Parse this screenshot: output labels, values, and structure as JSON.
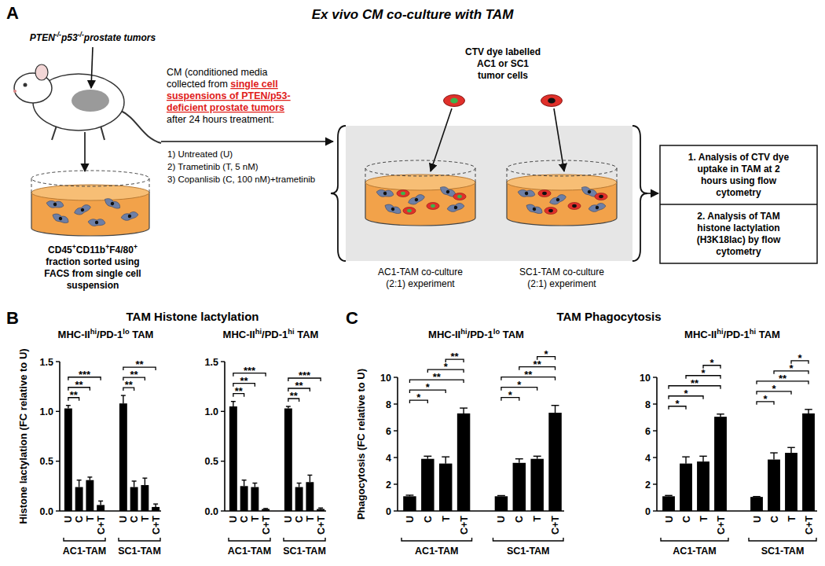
{
  "figure": {
    "panel_a": {
      "letter": "A",
      "title": "Ex vivo CM co-culture with TAM",
      "mouse_label": [
        "PTEN",
        "-/-",
        "p53",
        "-/-",
        "prostate tumors"
      ],
      "sort_label": [
        [
          "CD45",
          "+",
          "CD11b",
          "+",
          "F4/80",
          "+"
        ],
        [
          "fraction sorted using"
        ],
        [
          "FACS from single cell"
        ],
        [
          "suspension"
        ]
      ],
      "cm_text": [
        "CM (conditioned media",
        {
          "text": "collected from ",
          "em": "single cell"
        },
        {
          "em": "suspensions of PTEN/p53-"
        },
        {
          "em": "deficient prostate tumors"
        },
        "after 24 hours treatment:"
      ],
      "treatments": [
        "1) Untreated (U)",
        "2) Trametinib (T, 5 nM)",
        "3) Copanlisib (C, 100 nM)+trametinib"
      ],
      "ctv_label": [
        "CTV dye labelled",
        "AC1 or SC1",
        "tumor cells"
      ],
      "cocultures": [
        [
          "AC1-TAM co-culture",
          "(2:1) experiment"
        ],
        [
          "SC1-TAM co-culture",
          "(2:1) experiment"
        ]
      ],
      "analyses": [
        [
          "1. Analysis of CTV dye",
          "uptake in TAM at 2",
          "hours using flow",
          "cytometry"
        ],
        [
          "2. Analysis of TAM",
          "histone lactylation",
          "(H3K18lac) by flow",
          "cytometry"
        ]
      ]
    },
    "panels": [
      {
        "letter": "B",
        "title": "TAM Histone lactylation"
      },
      {
        "letter": "C",
        "title": "TAM Phagocytosis"
      }
    ]
  },
  "chart_data": [
    {
      "type": "bar",
      "subtitle": [
        "MHC-II",
        "hi",
        "/PD-1",
        "lo",
        " TAM"
      ],
      "y_label": "Histone lactylation (FC relative to U)",
      "categories": [
        "U",
        "C",
        "T",
        "C+T",
        "U",
        "C",
        "T",
        "C+T"
      ],
      "groups": [
        "AC1-TAM",
        "SC1-TAM"
      ],
      "values": [
        1.03,
        0.24,
        0.31,
        0.06,
        1.08,
        0.24,
        0.26,
        0.04
      ],
      "errors": [
        0.03,
        0.07,
        0.03,
        0.04,
        0.08,
        0.06,
        0.07,
        0.03
      ],
      "color": "#000000",
      "ylim": [
        0,
        1.5
      ],
      "yticks": [
        {
          "value": 0,
          "label": "0.0"
        },
        0.5,
        {
          "value": 1,
          "label": "1.0"
        },
        1.5
      ],
      "brackets": [
        {
          "bars": [
            0,
            1
          ],
          "label": "**"
        },
        {
          "bars": [
            0,
            2
          ],
          "label": "**"
        },
        {
          "bars": [
            0,
            3
          ],
          "label": "***"
        },
        {
          "bars": [
            4,
            5
          ],
          "label": "**"
        },
        {
          "bars": [
            4,
            6
          ],
          "label": "**"
        },
        {
          "bars": [
            4,
            7
          ],
          "label": "**"
        }
      ]
    },
    {
      "type": "bar",
      "subtitle": [
        "MHC-II",
        "hi",
        "/PD-1",
        "hi",
        " TAM"
      ],
      "categories": [
        "U",
        "C",
        "T",
        "C+T",
        "U",
        "C",
        "T",
        "C+T"
      ],
      "groups": [
        "AC1-TAM",
        "SC1-TAM"
      ],
      "values": [
        1.05,
        0.25,
        0.24,
        0.02,
        1.03,
        0.24,
        0.29,
        0.02
      ],
      "errors": [
        0.05,
        0.06,
        0.04,
        0.005,
        0.02,
        0.04,
        0.07,
        0.01
      ],
      "color": "#000000",
      "ylim": [
        0,
        1.5
      ],
      "yticks": [
        {
          "value": 0,
          "label": "0.0"
        },
        0.5,
        {
          "value": 1,
          "label": "1.0"
        },
        1.5
      ],
      "brackets": [
        {
          "bars": [
            0,
            1
          ],
          "label": "**"
        },
        {
          "bars": [
            0,
            2
          ],
          "label": "**"
        },
        {
          "bars": [
            0,
            3
          ],
          "label": "***"
        },
        {
          "bars": [
            4,
            5
          ],
          "label": "**"
        },
        {
          "bars": [
            4,
            6
          ],
          "label": "**"
        },
        {
          "bars": [
            4,
            7
          ],
          "label": "***"
        }
      ]
    },
    {
      "type": "bar",
      "subtitle": [
        "MHC-II",
        "hi",
        "/PD-1",
        "lo",
        " TAM"
      ],
      "y_label": "Phagocytosis (FC relative to U)",
      "categories": [
        "U",
        "C",
        "T",
        "C+T",
        "U",
        "C",
        "T",
        "C+T"
      ],
      "groups": [
        "AC1-TAM",
        "SC1-TAM"
      ],
      "values": [
        1.1,
        3.9,
        3.55,
        7.3,
        1.1,
        3.6,
        3.9,
        7.35
      ],
      "errors": [
        0.08,
        0.2,
        0.5,
        0.4,
        0.05,
        0.3,
        0.2,
        0.55
      ],
      "color": "#000000",
      "ylim": [
        0,
        10
      ],
      "yticks": [
        0,
        2,
        4,
        6,
        8,
        10
      ],
      "brackets": [
        {
          "bars": [
            0,
            1
          ],
          "label": "*"
        },
        {
          "bars": [
            0,
            2
          ],
          "label": "*"
        },
        {
          "bars": [
            0,
            3
          ],
          "label": "**"
        },
        {
          "bars": [
            1,
            3
          ],
          "label": "*"
        },
        {
          "bars": [
            2,
            3
          ],
          "label": "**"
        },
        {
          "bars": [
            4,
            5
          ],
          "label": "*"
        },
        {
          "bars": [
            4,
            6
          ],
          "label": "*"
        },
        {
          "bars": [
            4,
            7
          ],
          "label": "**"
        },
        {
          "bars": [
            5,
            7
          ],
          "label": "**"
        },
        {
          "bars": [
            6,
            7
          ],
          "label": "*"
        }
      ]
    },
    {
      "type": "bar",
      "subtitle": [
        "MHC-II",
        "hi",
        "/PD-1",
        "hi",
        " TAM"
      ],
      "categories": [
        "U",
        "C",
        "T",
        "C+T",
        "U",
        "C",
        "T",
        "C+T"
      ],
      "groups": [
        "AC1-TAM",
        "SC1-TAM"
      ],
      "values": [
        1.1,
        3.55,
        3.7,
        7.05,
        1.05,
        3.85,
        4.35,
        7.3
      ],
      "errors": [
        0.06,
        0.5,
        0.4,
        0.2,
        0.03,
        0.5,
        0.4,
        0.3
      ],
      "color": "#000000",
      "ylim": [
        0,
        10
      ],
      "yticks": [
        0,
        2,
        4,
        6,
        8,
        10
      ],
      "brackets": [
        {
          "bars": [
            0,
            1
          ],
          "label": "*"
        },
        {
          "bars": [
            0,
            2
          ],
          "label": "*"
        },
        {
          "bars": [
            0,
            3
          ],
          "label": "**"
        },
        {
          "bars": [
            1,
            3
          ],
          "label": "*"
        },
        {
          "bars": [
            2,
            3
          ],
          "label": "*"
        },
        {
          "bars": [
            4,
            5
          ],
          "label": "*"
        },
        {
          "bars": [
            4,
            6
          ],
          "label": "*"
        },
        {
          "bars": [
            4,
            7
          ],
          "label": "**"
        },
        {
          "bars": [
            5,
            7
          ],
          "label": "*"
        },
        {
          "bars": [
            6,
            7
          ],
          "label": "*"
        }
      ]
    }
  ]
}
